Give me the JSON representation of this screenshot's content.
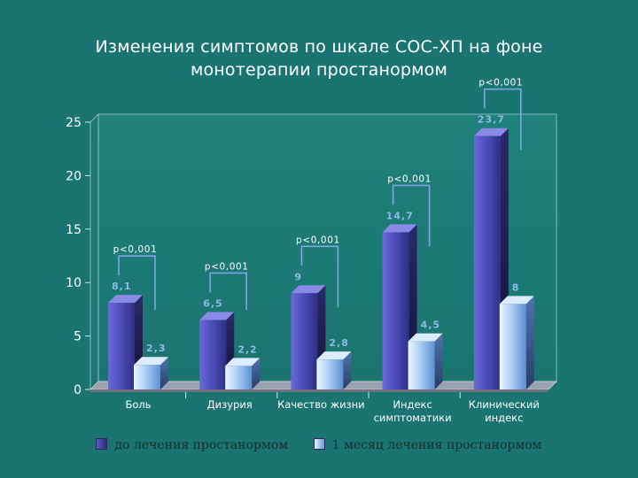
{
  "title_lines": [
    "Изменения симптомов по шкале СОС-ХП на фоне",
    "монотерапии простанормом"
  ],
  "legend": {
    "series1": "до лечения простанормом",
    "series2": "1 месяц лечения простанормом"
  },
  "colors": {
    "background": "#1a7572",
    "series1": "#4a4ab8",
    "series2": "#aad0f5",
    "axis_text": "#ffffff",
    "value_label": "#8fb8e8",
    "bracket": "#7fa6e0"
  },
  "chart_data": {
    "type": "bar",
    "categories": [
      "Боль",
      "Дизурия",
      "Качество жизни",
      "Индекс симптоматики",
      "Клинический индекс"
    ],
    "category_lines": [
      [
        "Боль"
      ],
      [
        "Дизурия"
      ],
      [
        "Качество жизни"
      ],
      [
        "Индекс",
        "симптоматики"
      ],
      [
        "Клинический",
        "индекс"
      ]
    ],
    "series": [
      {
        "name": "до лечения простанормом",
        "values": [
          8.1,
          6.5,
          9,
          14.7,
          23.7
        ],
        "labels": [
          "8,1",
          "6,5",
          "9",
          "14,7",
          "23,7"
        ]
      },
      {
        "name": "1 месяц лечения простанормом",
        "values": [
          2.3,
          2.2,
          2.8,
          4.5,
          8
        ],
        "labels": [
          "2,3",
          "2,2",
          "2,8",
          "4,5",
          "8"
        ]
      }
    ],
    "ylim": [
      0,
      25
    ],
    "yticks": [
      0,
      5,
      10,
      15,
      20,
      25
    ],
    "grid": false,
    "legend_position": "bottom",
    "annotations": [
      {
        "category": "Боль",
        "text": "p<0,001"
      },
      {
        "category": "Дизурия",
        "text": "p<0,001"
      },
      {
        "category": "Качество жизни",
        "text": "p<0,001"
      },
      {
        "category": "Индекс симптоматики",
        "text": "p<0,001"
      },
      {
        "category": "Клинический индекс",
        "text": "p<0,001"
      }
    ]
  }
}
